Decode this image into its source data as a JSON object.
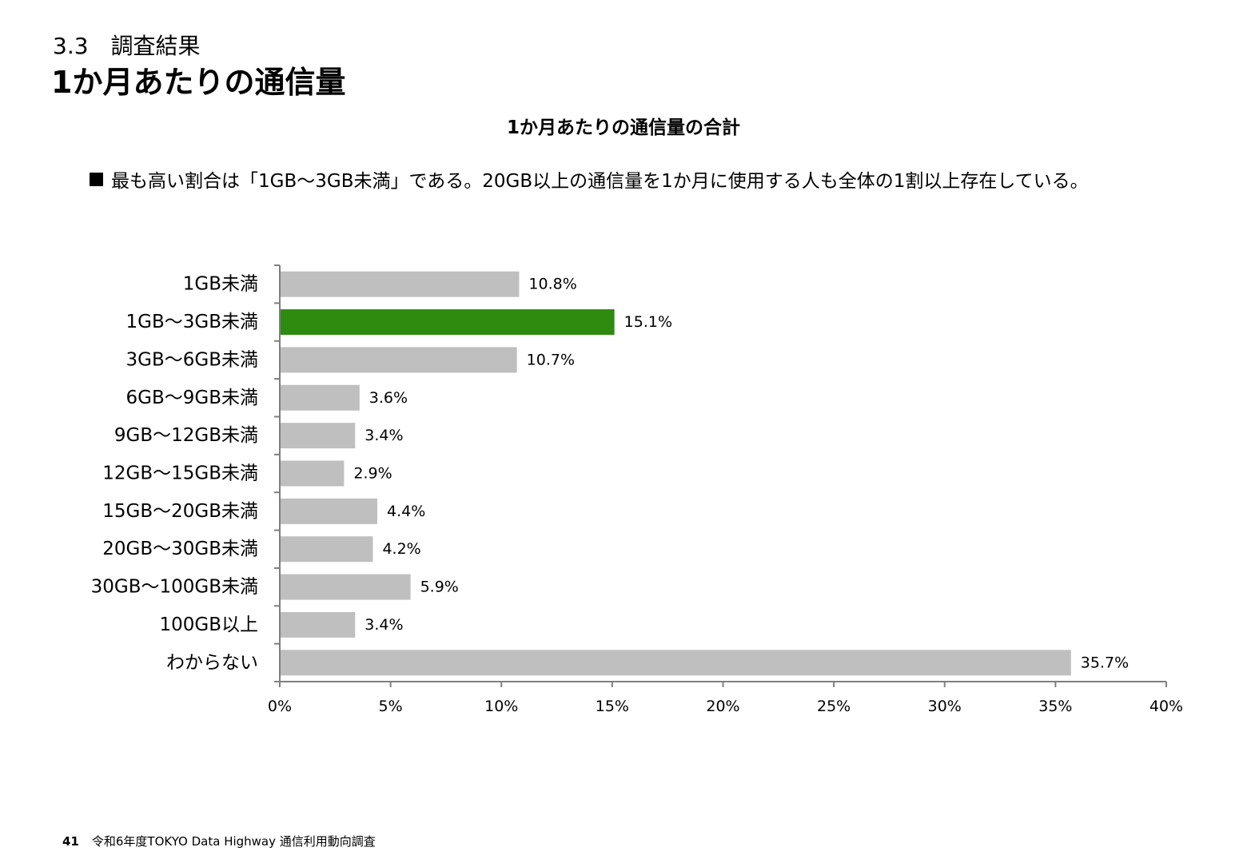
{
  "header": {
    "section": "3.3　調査結果",
    "title": "1か月あたりの通信量"
  },
  "summary": "最も高い割合は「1GB～3GB未満」である。20GB以上の通信量を1か月に使用する人も全体の1割以上存在している。",
  "footer": {
    "page_number": "41",
    "source": "令和6年度TOKYO Data Highway 通信利用動向調査"
  },
  "chart_data": {
    "type": "bar",
    "orientation": "horizontal",
    "title": "1か月あたりの通信量の合計",
    "categories": [
      "1GB未満",
      "1GB～3GB未満",
      "3GB～6GB未満",
      "6GB～9GB未満",
      "9GB～12GB未満",
      "12GB～15GB未満",
      "15GB～20GB未満",
      "20GB～30GB未満",
      "30GB～100GB未満",
      "100GB以上",
      "わからない"
    ],
    "values": [
      10.8,
      15.1,
      10.7,
      3.6,
      3.4,
      2.9,
      4.4,
      4.2,
      5.9,
      3.4,
      35.7
    ],
    "data_labels": [
      "10.8%",
      "15.1%",
      "10.7%",
      "3.6%",
      "3.4%",
      "2.9%",
      "4.4%",
      "4.2%",
      "5.9%",
      "3.4%",
      "35.7%"
    ],
    "highlight_index": 1,
    "xlim": [
      0,
      40
    ],
    "x_ticks": [
      0,
      5,
      10,
      15,
      20,
      25,
      30,
      35,
      40
    ],
    "x_tick_labels": [
      "0%",
      "5%",
      "10%",
      "15%",
      "20%",
      "25%",
      "30%",
      "35%",
      "40%"
    ],
    "grid": false,
    "legend": "none",
    "colors": {
      "bar": "#bfbfbf",
      "highlight": "#2e8b10",
      "axis": "#7f7f7f"
    }
  }
}
